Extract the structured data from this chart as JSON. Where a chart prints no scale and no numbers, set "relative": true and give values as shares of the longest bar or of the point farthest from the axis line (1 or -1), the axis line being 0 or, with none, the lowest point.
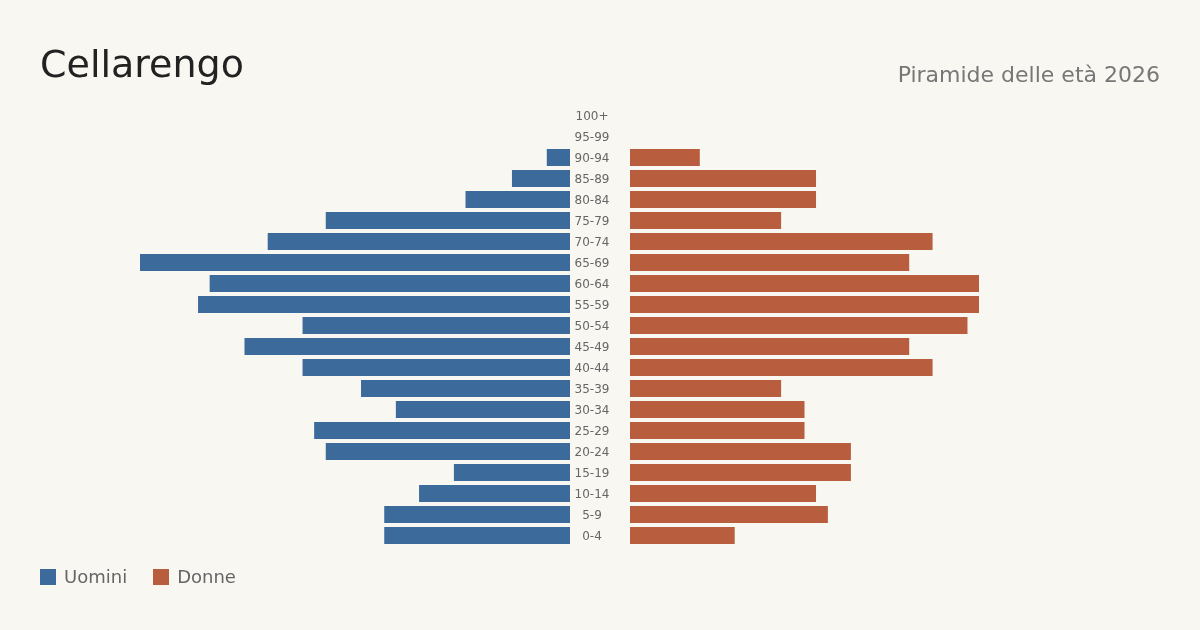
{
  "chart_data": [
    {
      "type": "bar",
      "orientation": "horizontal",
      "relative": true,
      "title": "Cellarengo",
      "legend": "bottom left",
      "tick_labels": false,
      "categories": [
        "100+",
        "95-99",
        "90-94",
        "85-89",
        "80-84",
        "75-79",
        "70-74",
        "65-69",
        "60-64",
        "55-59",
        "50-54",
        "45-49",
        "40-44",
        "35-39",
        "30-34",
        "25-29",
        "20-24",
        "15-19",
        "10-14",
        "5-9",
        "0-4"
      ],
      "series": [
        {
          "name": "Uomini",
          "color": "#3b6a9b",
          "values": [
            0,
            0,
            -0.054,
            -0.135,
            -0.243,
            -0.568,
            -0.703,
            -1,
            -0.838,
            -0.865,
            -0.622,
            -0.757,
            -0.622,
            -0.486,
            -0.405,
            -0.595,
            -0.568,
            -0.27,
            -0.351,
            -0.432,
            -0.432
          ]
        }
      ]
    },
    {
      "type": "bar",
      "orientation": "horizontal",
      "relative": true,
      "subtitle": "Piramide delle età 2026",
      "legend": "bottom left",
      "categories": [
        "100+",
        "95-99",
        "90-94",
        "85-89",
        "80-84",
        "75-79",
        "70-74",
        "65-69",
        "60-64",
        "55-59",
        "50-54",
        "45-49",
        "40-44",
        "35-39",
        "30-34",
        "25-29",
        "20-24",
        "15-19",
        "10-14",
        "5-9",
        "0-4"
      ],
      "series": [
        {
          "name": "Donne",
          "color": "#b85d3d",
          "values": [
            0,
            0,
            0.2,
            0.533,
            0.533,
            0.433,
            0.867,
            0.8,
            1,
            1,
            0.967,
            0.8,
            0.867,
            0.433,
            0.5,
            0.5,
            0.633,
            0.633,
            0.533,
            0.567,
            0.3
          ]
        }
      ]
    }
  ]
}
